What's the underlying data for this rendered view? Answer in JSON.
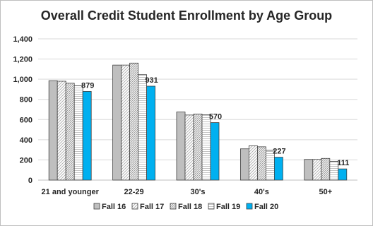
{
  "chart_data": {
    "type": "bar",
    "title": "Overall Credit Student Enrollment by Age Group",
    "xlabel": "",
    "ylabel": "",
    "ylim": [
      0,
      1400
    ],
    "yticks": [
      "0",
      "200",
      "400",
      "600",
      "800",
      "1,000",
      "1,200",
      "1,400"
    ],
    "grid": true,
    "legend_position": "bottom",
    "categories": [
      "21 and younger",
      "22-29",
      "30's",
      "40's",
      "50+"
    ],
    "series": [
      {
        "name": "Fall 16",
        "values": [
          985,
          1140,
          675,
          310,
          205
        ],
        "pattern": "solid-gray",
        "color": "#bfbfbf"
      },
      {
        "name": "Fall 17",
        "values": [
          980,
          1140,
          645,
          340,
          205
        ],
        "pattern": "diag-light",
        "color": "#e0e0e0"
      },
      {
        "name": "Fall 18",
        "values": [
          960,
          1160,
          655,
          330,
          215
        ],
        "pattern": "diag-dense",
        "color": "#d9d9d9"
      },
      {
        "name": "Fall 19",
        "values": [
          935,
          1045,
          648,
          295,
          185
        ],
        "pattern": "horiz-light",
        "color": "#e7e7e7"
      },
      {
        "name": "Fall 20",
        "values": [
          879,
          931,
          570,
          227,
          111
        ],
        "pattern": "solid-blue",
        "color": "#00b0f0"
      }
    ],
    "data_labels": {
      "series": "Fall 20",
      "values": [
        "879",
        "931",
        "570",
        "227",
        "111"
      ]
    }
  }
}
